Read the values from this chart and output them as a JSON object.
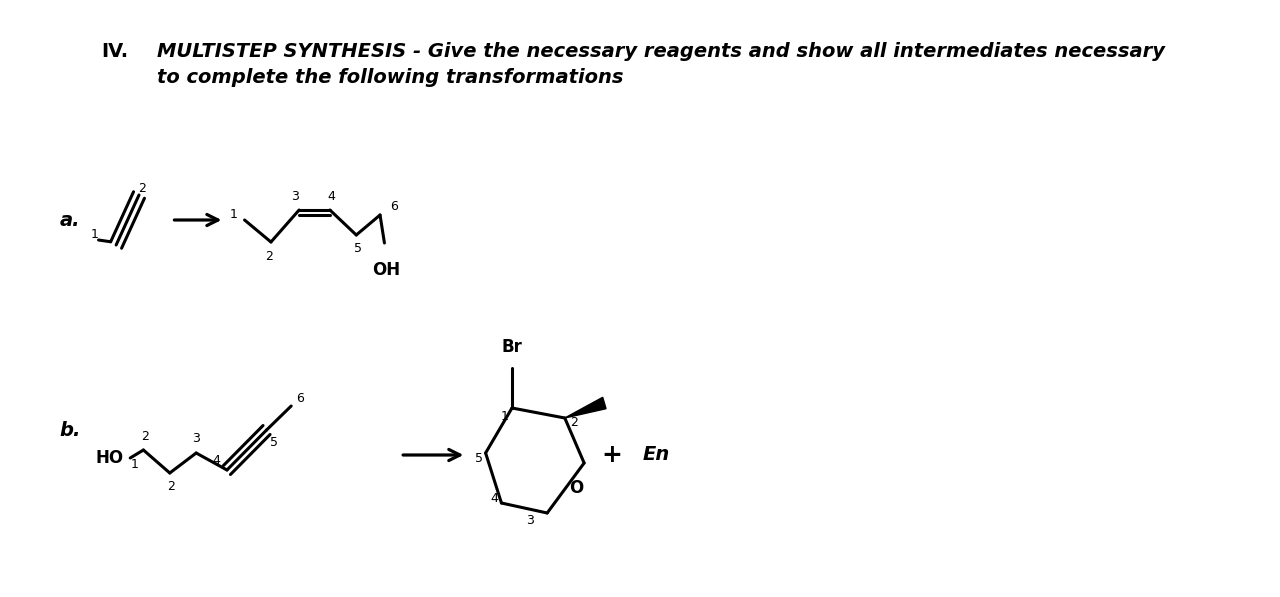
{
  "bg_color": "#ffffff",
  "title_iv": "IV.",
  "title_text1": "MULTISTEP SYNTHESIS - Give the necessary reagents and show all intermediates necessary",
  "title_text2": "to complete the following transformations",
  "label_a": "a.",
  "label_b": "b.",
  "oh_label": "OH",
  "br_label": "Br",
  "ho_label": "HO",
  "en_label": "En",
  "plus_label": "+",
  "font_size_title": 14,
  "font_size_label": 14,
  "font_size_num": 9,
  "font_size_chem": 12
}
